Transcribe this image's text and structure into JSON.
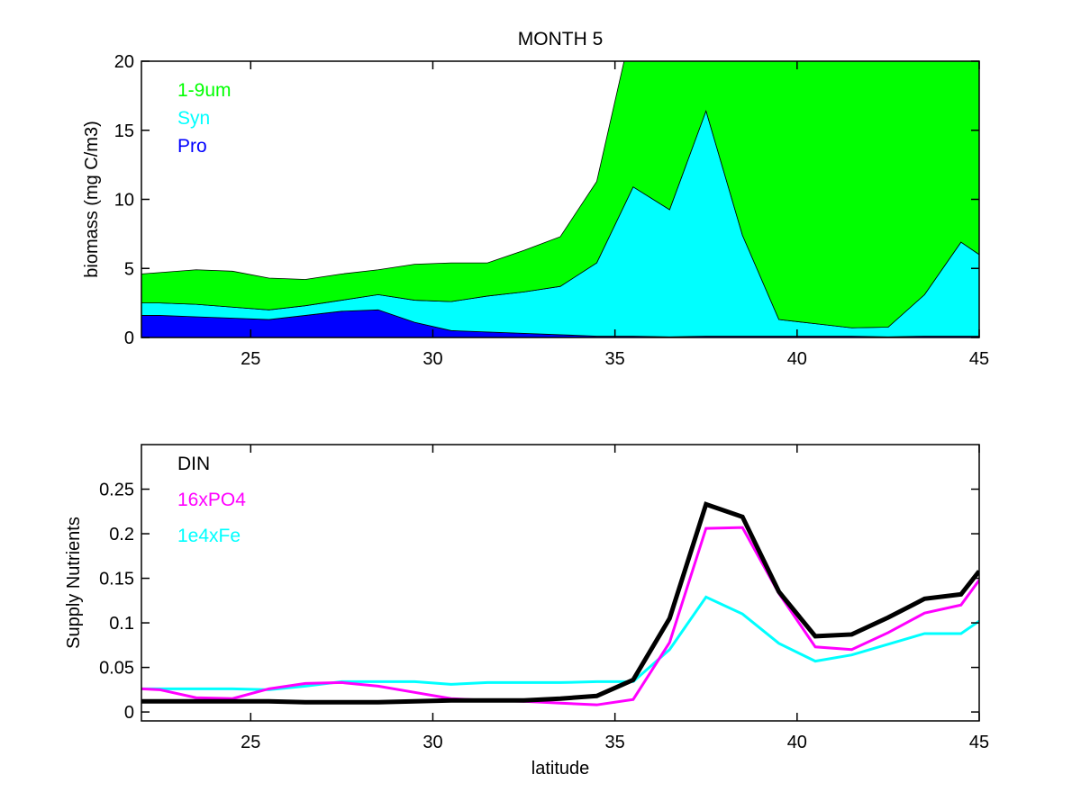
{
  "chart_data": [
    {
      "type": "area",
      "title": "MONTH 5",
      "xlabel": "",
      "ylabel": "biomass (mg C/m3)",
      "xlim": [
        22,
        45
      ],
      "ylim": [
        0,
        20
      ],
      "xticks": [
        25,
        30,
        35,
        40,
        45
      ],
      "yticks": [
        0,
        5,
        10,
        15,
        20
      ],
      "stacked": true,
      "legend_position": "top-left",
      "x": [
        22,
        22.5,
        23.5,
        24.5,
        25.5,
        26.5,
        27.5,
        28.5,
        29.5,
        30.5,
        31.5,
        32.5,
        33.5,
        34.5,
        35.5,
        36.5,
        37.5,
        38.5,
        39.5,
        40.5,
        41.5,
        42.5,
        43.5,
        44.5,
        45
      ],
      "series": [
        {
          "name": "Pro",
          "color": "#0000ff",
          "values": [
            1.6,
            1.6,
            1.5,
            1.4,
            1.3,
            1.6,
            1.9,
            2.0,
            1.1,
            0.5,
            0.4,
            0.3,
            0.2,
            0.1,
            0.1,
            0.05,
            0.1,
            0.1,
            0.1,
            0.1,
            0.1,
            0.05,
            0.1,
            0.1,
            0.1
          ]
        },
        {
          "name": "Syn",
          "color": "#00ffff",
          "values": [
            0.9,
            0.9,
            0.9,
            0.8,
            0.7,
            0.7,
            0.8,
            1.1,
            1.6,
            2.1,
            2.6,
            3.0,
            3.5,
            5.3,
            10.8,
            9.2,
            16.3,
            7.3,
            1.2,
            0.9,
            0.6,
            0.7,
            3.0,
            6.8,
            5.9
          ]
        },
        {
          "name": "1-9um",
          "color": "#00ff00",
          "values": [
            2.1,
            2.2,
            2.5,
            2.6,
            2.3,
            1.9,
            1.9,
            1.8,
            2.6,
            2.8,
            2.4,
            3.0,
            3.6,
            5.9,
            12.0,
            14.0,
            8.0,
            15.0,
            22.0,
            22.0,
            22.0,
            22.0,
            22.0,
            22.0,
            22.0
          ]
        }
      ]
    },
    {
      "type": "line",
      "title": "",
      "xlabel": "latitude",
      "ylabel": "Supply Nutrients",
      "xlim": [
        22,
        45
      ],
      "ylim": [
        -0.01,
        0.3
      ],
      "xticks": [
        25,
        30,
        35,
        40,
        45
      ],
      "yticks": [
        0,
        0.05,
        0.1,
        0.15,
        0.2,
        0.25
      ],
      "ytick_labels": [
        "0",
        "0.05",
        "0.1",
        "0.15",
        "0.2",
        "0.25"
      ],
      "legend_position": "top-left",
      "x": [
        22,
        22.5,
        23.5,
        24.5,
        25.5,
        26.5,
        27.5,
        28.5,
        29.5,
        30.5,
        31.5,
        32.5,
        33.5,
        34.5,
        35.5,
        36.5,
        37.5,
        38.5,
        39.5,
        40.5,
        41.5,
        42.5,
        43.5,
        44.5,
        45
      ],
      "series": [
        {
          "name": "DIN",
          "color": "#000000",
          "width": 5,
          "values": [
            0.012,
            0.012,
            0.012,
            0.012,
            0.012,
            0.011,
            0.011,
            0.011,
            0.012,
            0.013,
            0.013,
            0.013,
            0.015,
            0.018,
            0.036,
            0.105,
            0.233,
            0.219,
            0.135,
            0.085,
            0.087,
            0.106,
            0.127,
            0.132,
            0.158
          ]
        },
        {
          "name": "16xPO4",
          "color": "#ff00ff",
          "width": 3,
          "values": [
            0.026,
            0.025,
            0.016,
            0.015,
            0.026,
            0.032,
            0.033,
            0.029,
            0.022,
            0.015,
            0.013,
            0.012,
            0.01,
            0.008,
            0.014,
            0.078,
            0.206,
            0.207,
            0.133,
            0.073,
            0.07,
            0.089,
            0.111,
            0.12,
            0.148
          ]
        },
        {
          "name": "1e4xFe",
          "color": "#00ffff",
          "width": 3,
          "values": [
            0.026,
            0.026,
            0.026,
            0.026,
            0.025,
            0.029,
            0.034,
            0.034,
            0.034,
            0.031,
            0.033,
            0.033,
            0.033,
            0.034,
            0.034,
            0.07,
            0.129,
            0.11,
            0.077,
            0.057,
            0.064,
            0.076,
            0.088,
            0.088,
            0.102
          ]
        }
      ]
    }
  ]
}
